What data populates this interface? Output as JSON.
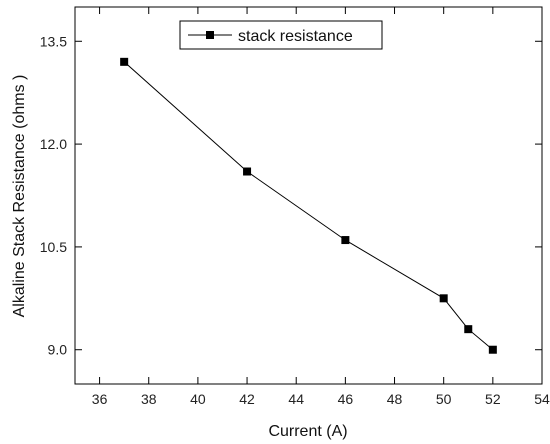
{
  "chart_data": {
    "type": "line",
    "xlabel": "Current (A)",
    "ylabel": "Alkaline Stack Resistance (ohms )",
    "xlim": [
      35,
      54
    ],
    "ylim": [
      8.5,
      14.0
    ],
    "xticks": [
      36,
      38,
      40,
      42,
      44,
      46,
      48,
      50,
      52,
      54
    ],
    "yticks": [
      9.0,
      10.5,
      12.0,
      13.5
    ],
    "ytick_labels": [
      "9.0",
      "10.5",
      "12.0",
      "13.5"
    ],
    "grid": false,
    "legend_position": "top-center",
    "series": [
      {
        "name": "stack resistance",
        "marker": "square",
        "color": "#000000",
        "x": [
          37,
          42,
          46,
          50,
          51,
          52
        ],
        "y": [
          13.2,
          11.6,
          10.6,
          9.75,
          9.3,
          9.0
        ]
      }
    ]
  }
}
